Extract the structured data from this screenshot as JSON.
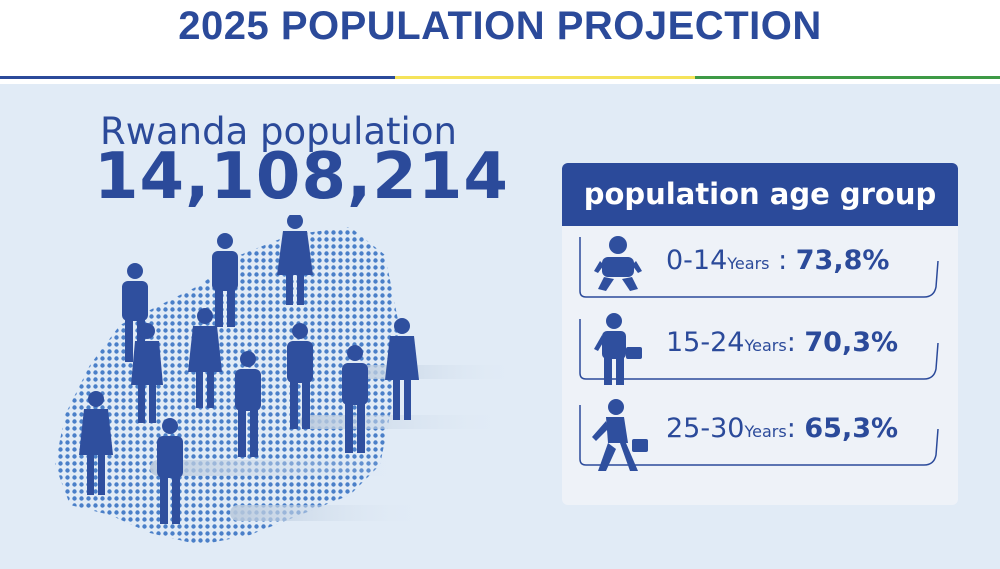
{
  "header": {
    "title": "2025 POPULATION PROJECTION"
  },
  "hero": {
    "label": "Rwanda population",
    "value": "14,108,214"
  },
  "age_groups": {
    "heading": "population age group",
    "rows": [
      {
        "range": "0-14",
        "unit": "Years",
        "separator": " : ",
        "percent": "73,8%",
        "icon": "baby-icon"
      },
      {
        "range": "15-24",
        "unit": "Years",
        "separator": ": ",
        "percent": "70,3%",
        "icon": "young-person-briefcase-icon"
      },
      {
        "range": "25-30",
        "unit": "Years",
        "separator": ": ",
        "percent": "65,3%",
        "icon": "walking-adult-briefcase-icon"
      }
    ]
  },
  "colors": {
    "brand_blue": "#2b4a9a",
    "panel_bg": "#e1ebf6",
    "rule_yellow": "#f5e35a",
    "rule_green": "#3e9a46"
  }
}
